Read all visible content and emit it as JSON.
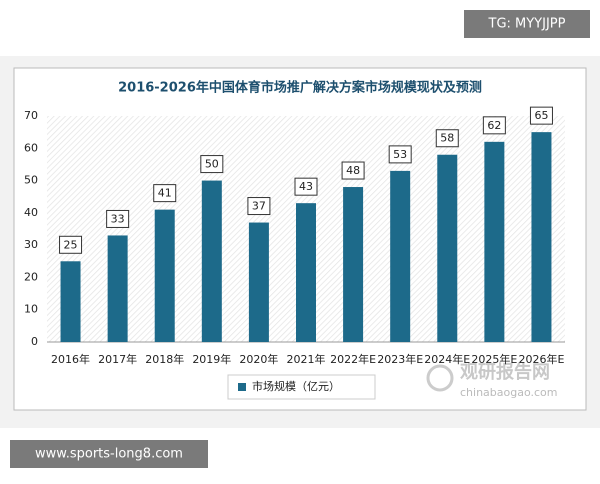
{
  "chart_data": {
    "type": "bar",
    "title": "2016-2026年中国体育市场推广解决方案市场规模现状及预测",
    "categories": [
      "2016年",
      "2017年",
      "2018年",
      "2019年",
      "2020年",
      "2021年",
      "2022年E",
      "2023年E",
      "2024年E",
      "2025年E",
      "2026年E"
    ],
    "series": [
      {
        "name": "市场规模（亿元）",
        "color": "#1d6a8a",
        "values": [
          25,
          33,
          41,
          50,
          37,
          43,
          48,
          53,
          58,
          62,
          65
        ]
      }
    ],
    "ylim": [
      0,
      70
    ],
    "yticks": [
      0,
      10,
      20,
      30,
      40,
      50,
      60,
      70
    ],
    "grid": false
  },
  "watermarks": {
    "top_right": "TG: MYYJJPP",
    "bottom_left": "www.sports-long8.com",
    "logo": "观研报告网",
    "logo_url": "chinabaogao.com"
  }
}
